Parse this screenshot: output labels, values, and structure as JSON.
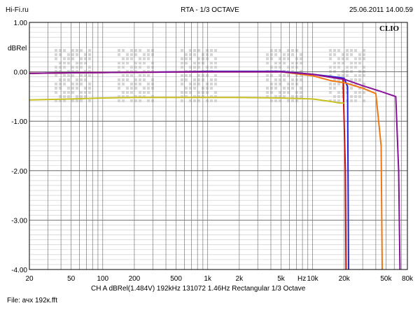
{
  "header": {
    "site": "Hi-Fi.ru",
    "title": "RTA - 1/3 OCTAVE",
    "datetime": "25.06.2011 14.00.59"
  },
  "brand": "CLIO",
  "footer": {
    "settings": "CH A  dBRel(1.484V)  192kHz  131072  1.46Hz  Rectangular  1/3 Octave",
    "file": "File: ачх 192к.fft"
  },
  "chart_data": {
    "type": "line",
    "ylabel": "dBRel",
    "xscale": "log",
    "xlim": [
      20,
      80000
    ],
    "ylim": [
      -4.0,
      1.0
    ],
    "grid": true,
    "x_unit_label": "Hz",
    "y_ticks": [
      {
        "v": 1.0,
        "label": "1.00"
      },
      {
        "v": 0.0,
        "label": "0.00"
      },
      {
        "v": -1.0,
        "label": "-1.00"
      },
      {
        "v": -2.0,
        "label": "-2.00"
      },
      {
        "v": -3.0,
        "label": "-3.00"
      },
      {
        "v": -4.0,
        "label": "-4.00"
      }
    ],
    "x_ticks": [
      {
        "v": 20,
        "label": "20"
      },
      {
        "v": 50,
        "label": "50"
      },
      {
        "v": 100,
        "label": "100"
      },
      {
        "v": 200,
        "label": "200"
      },
      {
        "v": 500,
        "label": "500"
      },
      {
        "v": 1000,
        "label": "1k"
      },
      {
        "v": 2000,
        "label": "2k"
      },
      {
        "v": 5000,
        "label": "5k"
      },
      {
        "v": 10000,
        "label": "10k"
      },
      {
        "v": 20000,
        "label": "20k"
      },
      {
        "v": 50000,
        "label": "50k"
      },
      {
        "v": 80000,
        "label": "80k"
      }
    ],
    "series": [
      {
        "color": "#2222dd",
        "x": [
          20,
          50,
          200,
          1000,
          5000,
          10000,
          16000,
          20000,
          21500,
          21800,
          22000
        ],
        "y": [
          -0.03,
          -0.02,
          -0.01,
          0.01,
          0.01,
          -0.05,
          -0.1,
          -0.13,
          -0.3,
          -2.5,
          -4.2
        ]
      },
      {
        "color": "#cc1111",
        "x": [
          20,
          50,
          200,
          1000,
          5000,
          10000,
          16000,
          19500,
          20500,
          20800
        ],
        "y": [
          -0.03,
          -0.02,
          -0.01,
          0.0,
          0.0,
          -0.05,
          -0.12,
          -0.15,
          -2.0,
          -4.2
        ]
      },
      {
        "color": "#ee7711",
        "x": [
          20,
          50,
          200,
          1000,
          5000,
          10000,
          15000,
          20000,
          30000,
          40000,
          45000,
          46000
        ],
        "y": [
          -0.03,
          -0.02,
          -0.01,
          0.0,
          0.0,
          -0.08,
          -0.18,
          -0.22,
          -0.33,
          -0.44,
          -1.5,
          -4.2
        ]
      },
      {
        "color": "#881199",
        "x": [
          20,
          50,
          200,
          1000,
          5000,
          10000,
          16000,
          20000,
          30000,
          45000,
          62000,
          66000,
          68000
        ],
        "y": [
          -0.03,
          -0.02,
          -0.01,
          0.0,
          0.0,
          -0.05,
          -0.12,
          -0.15,
          -0.28,
          -0.4,
          -0.5,
          -2.0,
          -4.2
        ]
      },
      {
        "color": "#c8c020",
        "x": [
          20,
          50,
          100,
          200,
          500,
          1000,
          2000,
          5000,
          10000,
          15000,
          18000,
          20000
        ],
        "y": [
          -0.57,
          -0.55,
          -0.53,
          -0.52,
          -0.52,
          -0.52,
          -0.52,
          -0.53,
          -0.55,
          -0.6,
          -0.63,
          -0.63
        ]
      }
    ]
  }
}
